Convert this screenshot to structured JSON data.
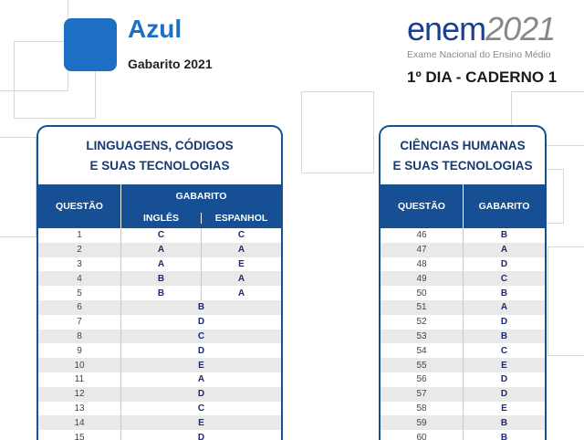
{
  "header": {
    "color_label": "Azul",
    "subtitle": "Gabarito 2021",
    "logo_word": "enem",
    "logo_year": "2021",
    "logo_sub": "Exame Nacional do Ensino Médio",
    "day": "1º DIA - CADERNO 1",
    "accent": "#1c6fc2"
  },
  "left": {
    "title_1": "LINGUAGENS, CÓDIGOS",
    "title_2": "E SUAS TECNOLOGIAS",
    "col_q": "QUESTÃO",
    "col_g": "GABARITO",
    "col_en": "INGLÊS",
    "col_es": "ESPANHOL",
    "lang_rows": [
      {
        "q": "1",
        "en": "C",
        "es": "C"
      },
      {
        "q": "2",
        "en": "A",
        "es": "A"
      },
      {
        "q": "3",
        "en": "A",
        "es": "E"
      },
      {
        "q": "4",
        "en": "B",
        "es": "A"
      },
      {
        "q": "5",
        "en": "B",
        "es": "A"
      }
    ],
    "rows": [
      {
        "q": "6",
        "a": "B"
      },
      {
        "q": "7",
        "a": "D"
      },
      {
        "q": "8",
        "a": "C"
      },
      {
        "q": "9",
        "a": "D"
      },
      {
        "q": "10",
        "a": "E"
      },
      {
        "q": "11",
        "a": "A"
      },
      {
        "q": "12",
        "a": "D"
      },
      {
        "q": "13",
        "a": "C"
      },
      {
        "q": "14",
        "a": "E"
      },
      {
        "q": "15",
        "a": "D"
      }
    ]
  },
  "right": {
    "title_1": "CIÊNCIAS HUMANAS",
    "title_2": "E SUAS TECNOLOGIAS",
    "col_q": "QUESTÃO",
    "col_g": "GABARITO",
    "rows": [
      {
        "q": "46",
        "a": "B"
      },
      {
        "q": "47",
        "a": "A"
      },
      {
        "q": "48",
        "a": "D"
      },
      {
        "q": "49",
        "a": "C"
      },
      {
        "q": "50",
        "a": "B"
      },
      {
        "q": "51",
        "a": "A"
      },
      {
        "q": "52",
        "a": "D"
      },
      {
        "q": "53",
        "a": "B"
      },
      {
        "q": "54",
        "a": "C"
      },
      {
        "q": "55",
        "a": "E"
      },
      {
        "q": "56",
        "a": "D"
      },
      {
        "q": "57",
        "a": "D"
      },
      {
        "q": "58",
        "a": "E"
      },
      {
        "q": "59",
        "a": "B"
      },
      {
        "q": "60",
        "a": "B"
      }
    ]
  }
}
